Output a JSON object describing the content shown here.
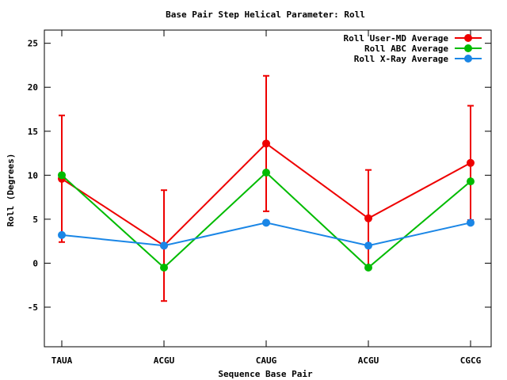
{
  "chart_data": {
    "type": "line",
    "title": "Base Pair Step Helical Parameter: Roll",
    "xlabel": "Sequence Base Pair",
    "ylabel": "Roll (Degrees)",
    "categories": [
      "TAUA",
      "ACGU",
      "CAUG",
      "ACGU",
      "CGCG"
    ],
    "ylim": [
      -9.5,
      26.5
    ],
    "yticks": [
      "-5",
      "0",
      "5",
      "10",
      "15",
      "20",
      "25"
    ],
    "grid": false,
    "legend_position": "top-right",
    "series": [
      {
        "name": "Roll User-MD Average",
        "color": "#ee0000",
        "values": [
          9.6,
          2.0,
          13.6,
          5.1,
          11.4
        ],
        "error_low": [
          2.4,
          -4.3,
          5.9,
          -0.5,
          4.9
        ],
        "error_high": [
          16.8,
          8.3,
          21.3,
          10.6,
          17.9
        ]
      },
      {
        "name": "Roll ABC Average",
        "color": "#00bb00",
        "values": [
          10.0,
          -0.5,
          10.3,
          -0.5,
          9.3
        ]
      },
      {
        "name": "Roll X-Ray Average",
        "color": "#1a86e6",
        "values": [
          3.2,
          2.0,
          4.6,
          2.0,
          4.6
        ]
      }
    ]
  }
}
